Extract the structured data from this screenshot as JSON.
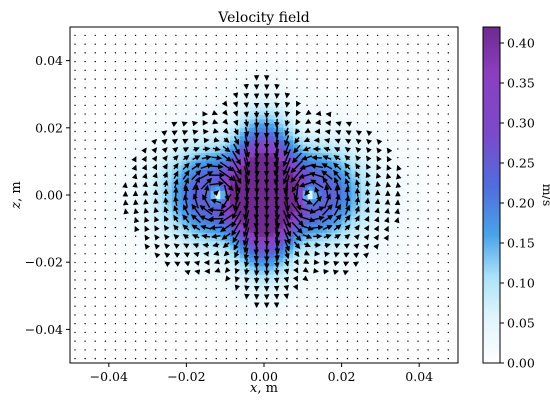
{
  "chart_data": {
    "type": "heatmap",
    "title": "Velocity field",
    "xlabel_var": "x",
    "xlabel_unit": ", m",
    "ylabel_var": "z",
    "ylabel_unit": ", m",
    "xlim": [
      -0.05,
      0.05
    ],
    "ylim": [
      -0.05,
      0.05
    ],
    "x_ticks": [
      -0.04,
      -0.02,
      0.0,
      0.02,
      0.04
    ],
    "x_tick_labels": [
      "−0.04",
      "−0.02",
      "0.00",
      "0.02",
      "0.04"
    ],
    "y_ticks": [
      -0.04,
      -0.02,
      0.0,
      0.02,
      0.04
    ],
    "y_tick_labels": [
      "−0.04",
      "−0.02",
      "0.00",
      "0.02",
      "0.04"
    ],
    "colorbar": {
      "label": "m/s",
      "range": [
        0.0,
        0.42
      ],
      "ticks": [
        0.0,
        0.05,
        0.1,
        0.15,
        0.2,
        0.25,
        0.3,
        0.35,
        0.4
      ],
      "tick_labels": [
        "0.00",
        "0.05",
        "0.10",
        "0.15",
        "0.20",
        "0.25",
        "0.30",
        "0.35",
        "0.40"
      ],
      "colors": [
        "#ffffff",
        "#c6ecfb",
        "#8fd3f4",
        "#3f9ae6",
        "#5a63d6",
        "#8b3fc1",
        "#7d2a9e"
      ]
    },
    "field": {
      "description_grid": "quiver",
      "grid_step": 0.0026,
      "peak_speed": 0.42,
      "jet_center": [
        0.0,
        0.0
      ],
      "vortex_centers": [
        [
          -0.011,
          0.0
        ],
        [
          0.011,
          0.0
        ]
      ]
    },
    "grid": false
  }
}
